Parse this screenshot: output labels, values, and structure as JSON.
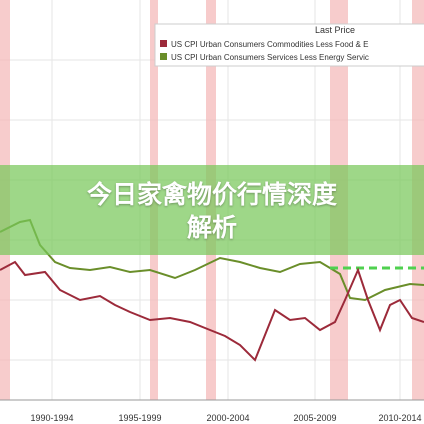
{
  "legend": {
    "title": "Last Price",
    "items": [
      "US CPI Urban Consumers Commodities Less Food & E",
      "US CPI Urban Consumers Services Less Energy Servic"
    ]
  },
  "x_labels": [
    "1990-1994",
    "1995-1999",
    "2000-2004",
    "2005-2009",
    "2010-2014"
  ],
  "banner": {
    "title": "今日家禽物价行情深度解析"
  }
}
